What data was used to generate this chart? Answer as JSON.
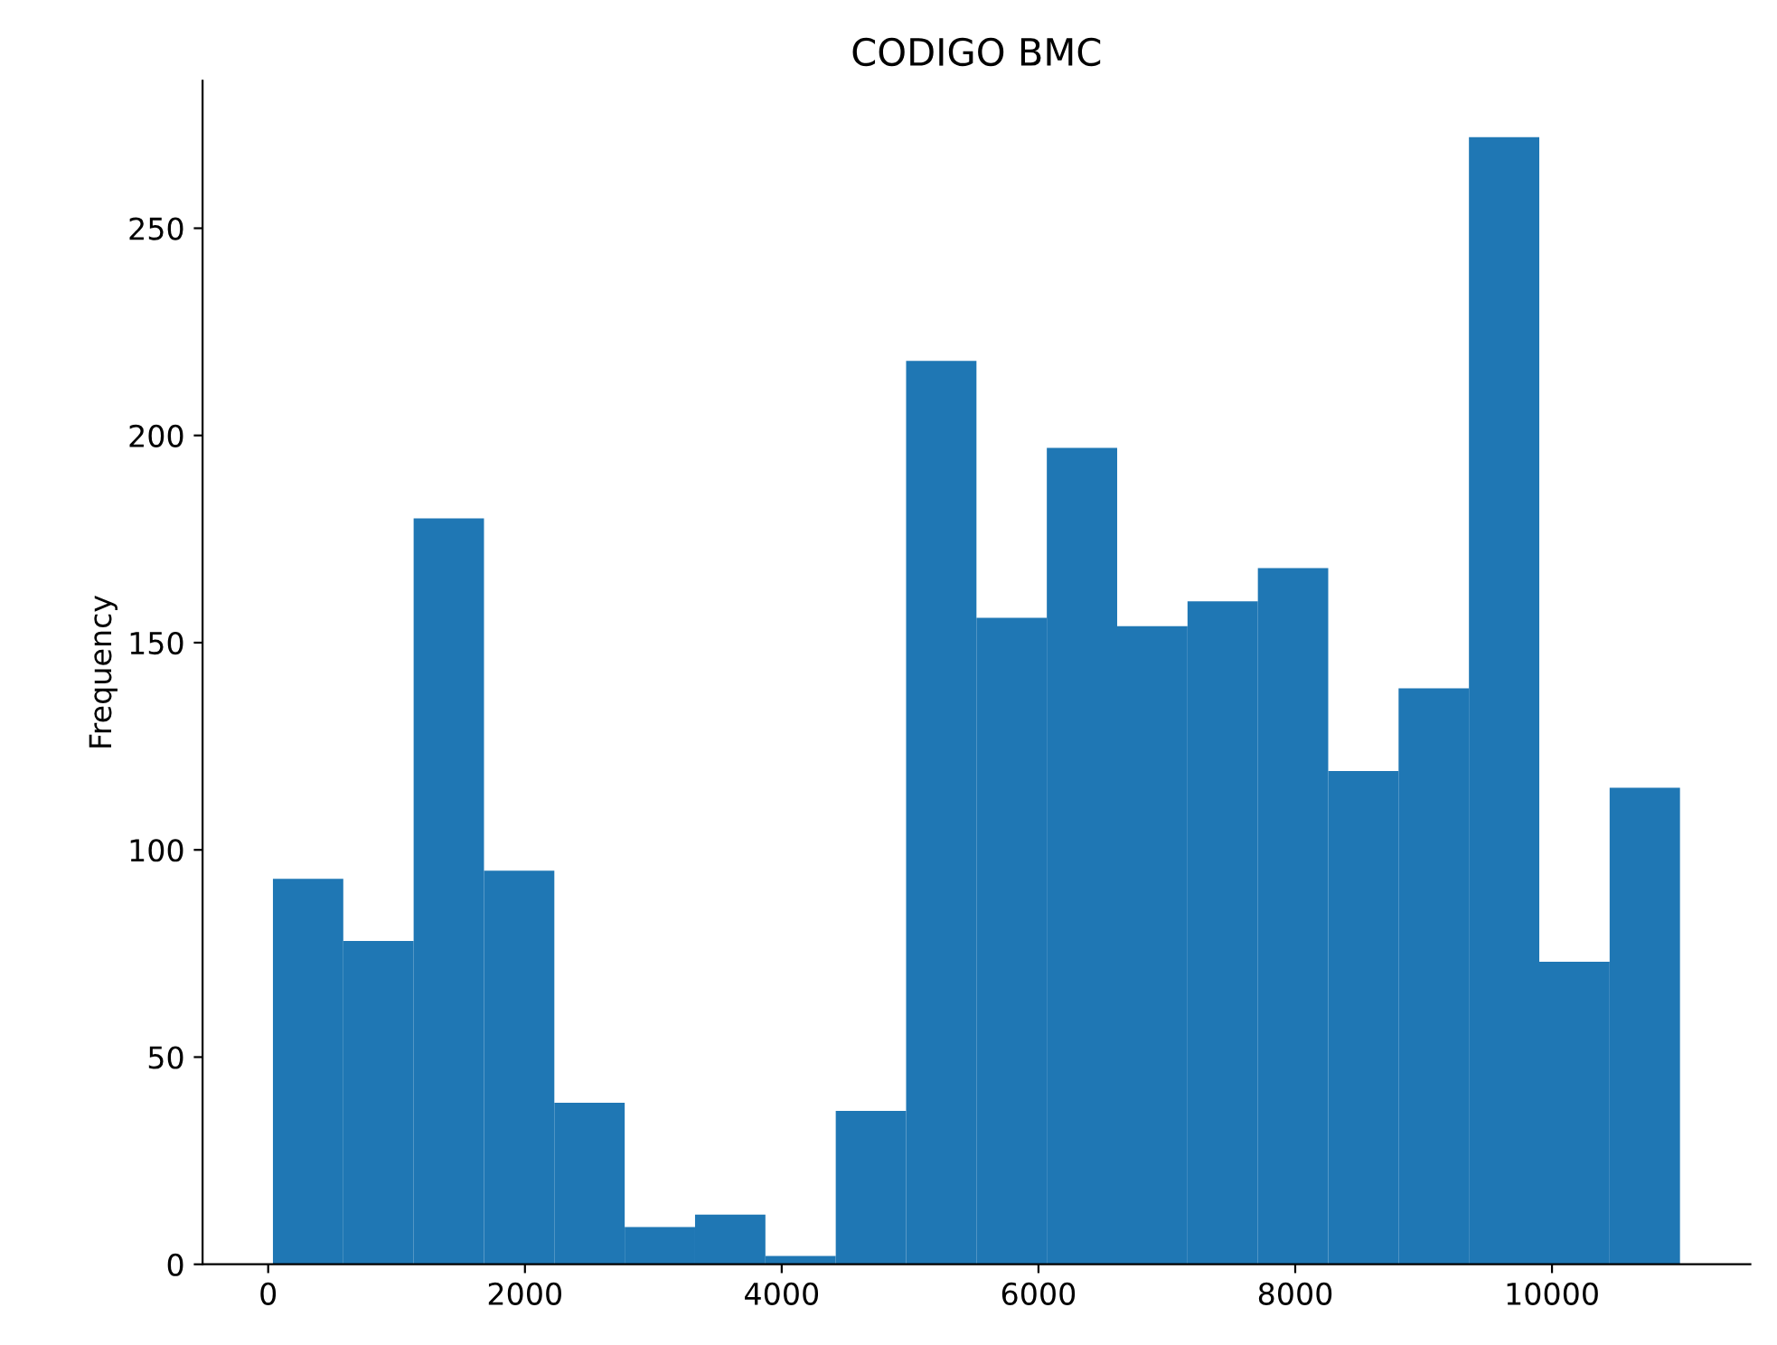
{
  "chart_data": {
    "type": "histogram",
    "title": "CODIGO BMC",
    "ylabel": "Frequency",
    "bins": [
      37,
      585,
      1133,
      1681,
      2229,
      2777,
      3325,
      3873,
      4421,
      4969,
      5517,
      6065,
      6613,
      7161,
      7709,
      8257,
      8805,
      9353,
      9901,
      10449,
      10997
    ],
    "values": [
      93,
      78,
      180,
      95,
      39,
      9,
      12,
      2,
      37,
      218,
      156,
      197,
      154,
      160,
      168,
      119,
      139,
      272,
      73,
      115
    ],
    "color": "#1f77b4",
    "xlim": [
      -511,
      11545
    ],
    "xticks": [
      0,
      2000,
      4000,
      6000,
      8000,
      10000
    ],
    "ylim": [
      0,
      285.6
    ],
    "yticks": [
      0,
      50,
      100,
      150,
      200,
      250
    ],
    "grid": false
  }
}
